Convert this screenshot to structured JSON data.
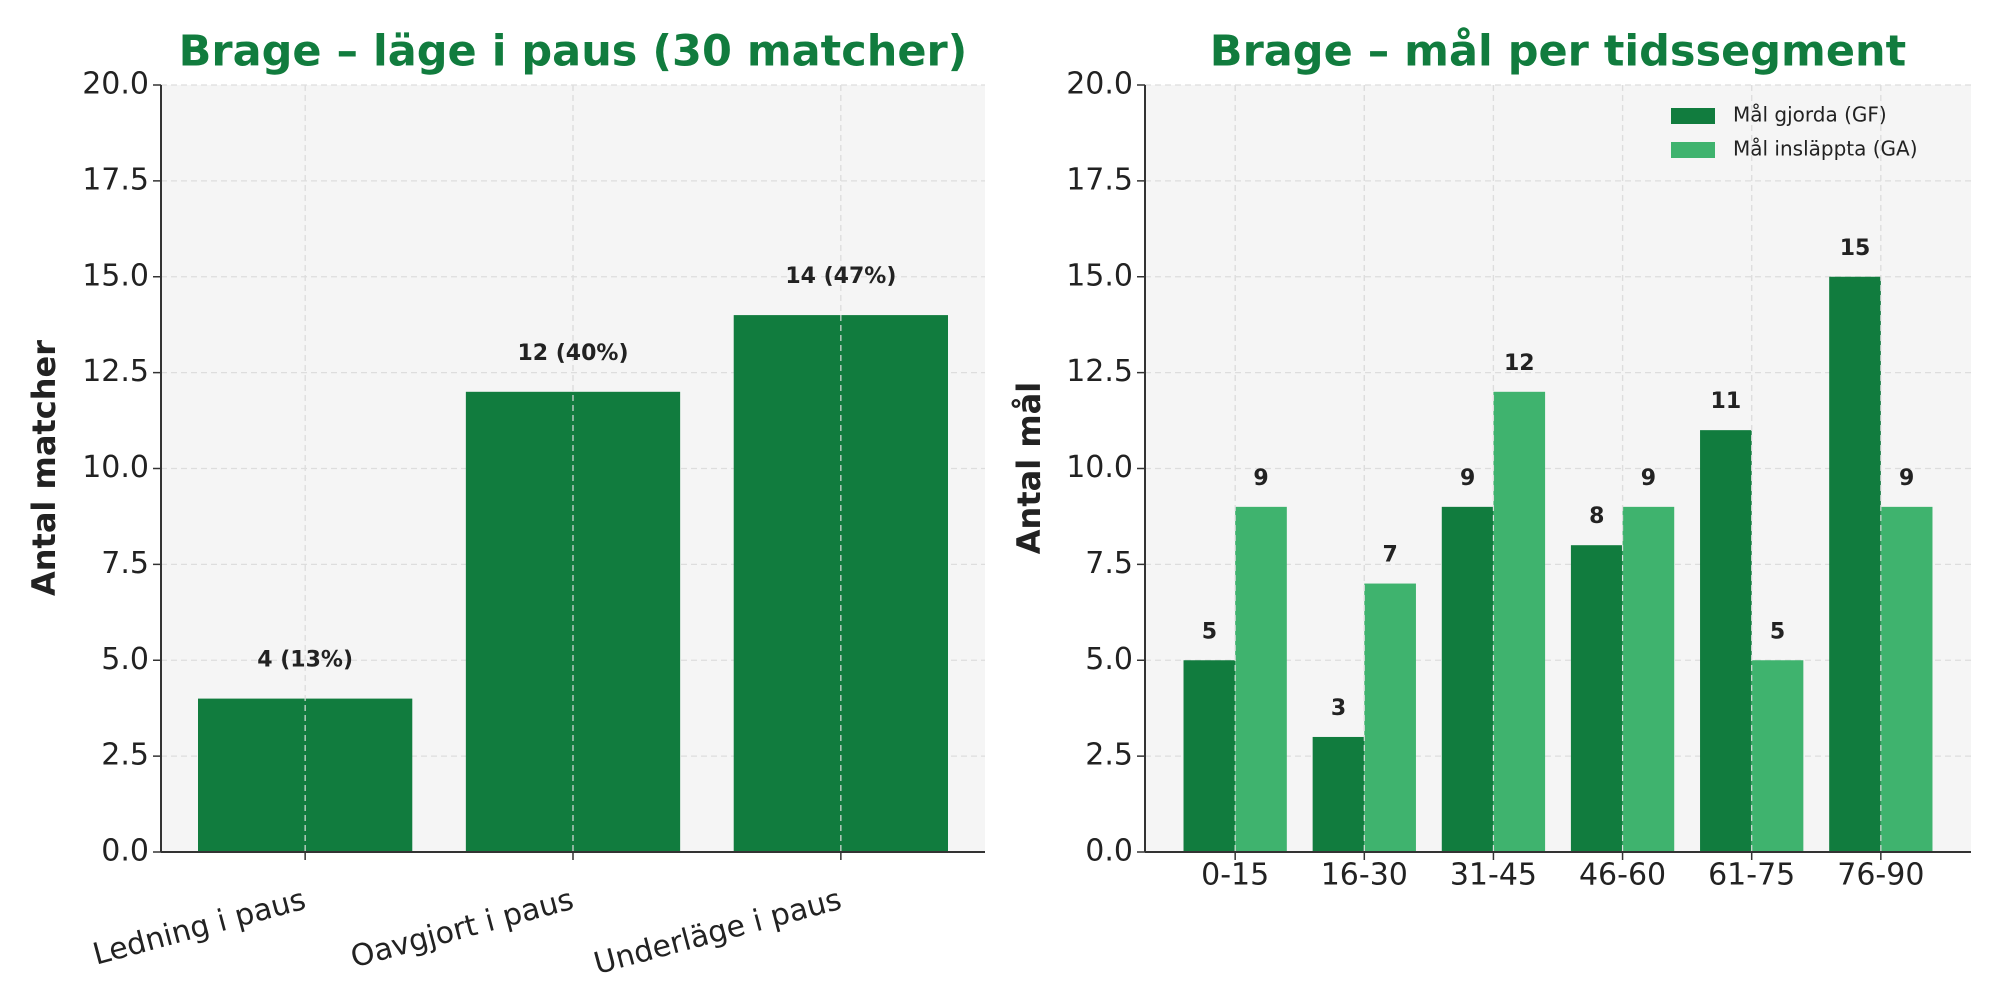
{
  "chart_data": [
    {
      "type": "bar",
      "title": "Brage – läge i paus (30 matcher)",
      "ylabel": "Antal matcher",
      "categories": [
        "Ledning i paus",
        "Oavgjort i paus",
        "Underläge i paus"
      ],
      "values": [
        4,
        12,
        14
      ],
      "value_labels": [
        "4 (13%)",
        "12 (40%)",
        "14 (47%)"
      ],
      "color": "#117c3e",
      "ylim": [
        0,
        20
      ],
      "yticks": [
        {
          "value": 0,
          "label": "0.0"
        },
        2.5,
        {
          "value": 5,
          "label": "5.0"
        },
        7.5,
        {
          "value": 10,
          "label": "10.0"
        },
        12.5,
        {
          "value": 15,
          "label": "15.0"
        },
        17.5,
        {
          "value": 20,
          "label": "20.0"
        }
      ],
      "grid": true
    },
    {
      "type": "grouped_bar",
      "title": "Brage – mål per tidssegment",
      "ylabel": "Antal mål",
      "categories": [
        "0-15",
        "16-30",
        "31-45",
        "46-60",
        "61-75",
        "76-90"
      ],
      "series": [
        {
          "name": "Mål gjorda (GF)",
          "color": "#117c3e",
          "values": [
            5,
            3,
            9,
            8,
            11,
            15
          ]
        },
        {
          "name": "Mål insläppta (GA)",
          "color": "#3fb36e",
          "values": [
            9,
            7,
            12,
            9,
            5,
            9
          ]
        }
      ],
      "ylim": [
        0,
        20
      ],
      "yticks": [
        {
          "value": 0,
          "label": "0.0"
        },
        2.5,
        {
          "value": 5,
          "label": "5.0"
        },
        7.5,
        {
          "value": 10,
          "label": "10.0"
        },
        12.5,
        {
          "value": 15,
          "label": "15.0"
        },
        17.5,
        {
          "value": 20,
          "label": "20.0"
        }
      ],
      "grid": true,
      "legend": "upper right"
    }
  ]
}
